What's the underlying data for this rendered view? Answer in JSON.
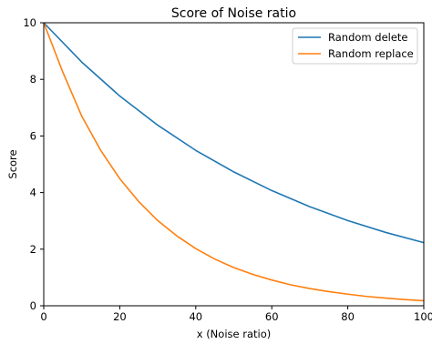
{
  "chart_data": {
    "type": "line",
    "title": "Score of Noise ratio",
    "xlabel": "x (Noise ratio)",
    "ylabel": "Score",
    "xlim": [
      0,
      100
    ],
    "ylim": [
      0,
      10
    ],
    "x_ticks": [
      0,
      20,
      40,
      60,
      80,
      100
    ],
    "y_ticks": [
      0,
      2,
      4,
      6,
      8,
      10
    ],
    "x_tick_labels": [
      "0",
      "20",
      "40",
      "60",
      "80",
      "100"
    ],
    "y_tick_labels": [
      "0",
      "2",
      "4",
      "6",
      "8",
      "10"
    ],
    "grid": false,
    "legend_position": "upper right",
    "series": [
      {
        "name": "Random delete",
        "color": "#1f77b4",
        "x": [
          0,
          10,
          20,
          30,
          40,
          50,
          60,
          70,
          80,
          90,
          100
        ],
        "y": [
          10,
          8.61,
          7.41,
          6.38,
          5.49,
          4.73,
          4.07,
          3.5,
          3.01,
          2.59,
          2.23
        ]
      },
      {
        "name": "Random replace",
        "color": "#ff7f0e",
        "x": [
          0,
          5,
          10,
          15,
          20,
          25,
          30,
          35,
          40,
          45,
          50,
          55,
          60,
          65,
          70,
          75,
          80,
          85,
          90,
          95,
          100
        ],
        "y": [
          10,
          8.26,
          6.7,
          5.49,
          4.49,
          3.68,
          3.01,
          2.47,
          2.02,
          1.65,
          1.35,
          1.11,
          0.91,
          0.74,
          0.61,
          0.5,
          0.41,
          0.33,
          0.27,
          0.22,
          0.18
        ]
      }
    ]
  }
}
